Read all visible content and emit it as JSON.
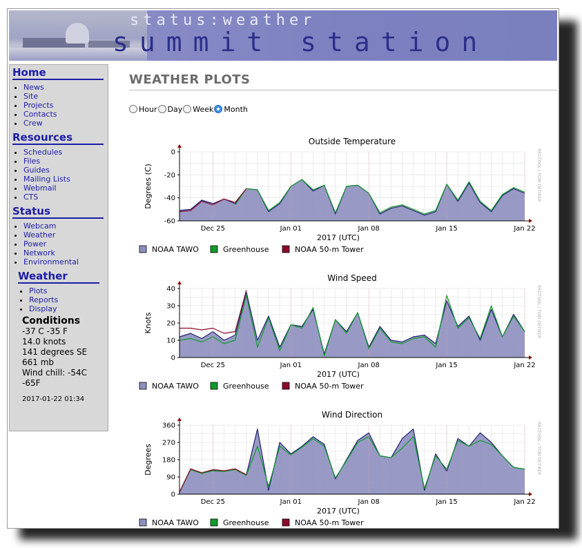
{
  "banner": {
    "subtitle": "status:weather",
    "title": "summit station"
  },
  "sidebar": {
    "sections": [
      {
        "heading": "Home",
        "items": [
          "News",
          "Site",
          "Projects",
          "Contacts",
          "Crew"
        ]
      },
      {
        "heading": "Resources",
        "items": [
          "Schedules",
          "Files",
          "Guides",
          "Mailing Lists",
          "Webmail",
          "CTS"
        ]
      },
      {
        "heading": "Status",
        "items": [
          "Webcam",
          "Weather",
          "Power",
          "Network",
          "Environmental"
        ]
      }
    ],
    "weather": {
      "heading": "Weather",
      "items": [
        "Plots",
        "Reports",
        "Display"
      ]
    },
    "conditions": {
      "title": "Conditions",
      "lines": [
        "-37 C -35 F",
        "14.0 knots",
        "141 degrees SE",
        "661 mb",
        "Wind chill: -54C",
        "-65F"
      ],
      "timestamp": "2017-01-22 01:34"
    }
  },
  "main": {
    "page_title": "WEATHER PLOTS",
    "periods": [
      {
        "label": "Hour",
        "selected": false
      },
      {
        "label": "Day",
        "selected": false
      },
      {
        "label": "Week",
        "selected": false
      },
      {
        "label": "Month",
        "selected": true
      }
    ]
  },
  "watermark": "RRDTOOL / TOBI OETIKER",
  "colors": {
    "noaa_tawo": "#8d8fbf",
    "noaa_tawo_line": "#1f2070",
    "greenhouse": "#119a2b",
    "tower": "#8b0a2a",
    "plot_bg": "#ffffff"
  },
  "chart_data": [
    {
      "type": "area",
      "title": "Outside Temperature",
      "xlabel": "2017 (UTC)",
      "ylabel": "Degrees (C)",
      "ylim": [
        -60,
        0
      ],
      "yticks": [
        0,
        -20,
        -40,
        -60
      ],
      "xlim": [
        "2016-12-22",
        "2017-01-22"
      ],
      "xticks": [
        "Dec 25",
        "Jan 01",
        "Jan 08",
        "Jan 15",
        "Jan 22"
      ],
      "legend": [
        "NOAA TAWO",
        "Greenhouse",
        "NOAA 50-m Tower"
      ],
      "series": [
        {
          "name": "NOAA TAWO",
          "x": [
            "2016-12-22",
            "2016-12-23",
            "2016-12-24",
            "2016-12-25",
            "2016-12-26",
            "2016-12-27",
            "2016-12-28",
            "2016-12-29",
            "2016-12-30",
            "2016-12-31",
            "2017-01-01",
            "2017-01-02",
            "2017-01-03",
            "2017-01-04",
            "2017-01-05",
            "2017-01-06",
            "2017-01-07",
            "2017-01-08",
            "2017-01-09",
            "2017-01-10",
            "2017-01-11",
            "2017-01-12",
            "2017-01-13",
            "2017-01-14",
            "2017-01-15",
            "2017-01-16",
            "2017-01-17",
            "2017-01-18",
            "2017-01-19",
            "2017-01-20",
            "2017-01-21",
            "2017-01-22"
          ],
          "values": [
            -51,
            -50,
            -42,
            -45,
            -41,
            -45,
            -32,
            -33,
            -52,
            -45,
            -30,
            -24,
            -34,
            -29,
            -54,
            -30,
            -29,
            -36,
            -54,
            -49,
            -47,
            -51,
            -55,
            -52,
            -28,
            -43,
            -27,
            -44,
            -52,
            -38,
            -32,
            -36
          ]
        },
        {
          "name": "Greenhouse",
          "x": [
            "2016-12-27",
            "2016-12-28",
            "2016-12-29",
            "2016-12-30",
            "2016-12-31",
            "2017-01-01",
            "2017-01-02",
            "2017-01-03",
            "2017-01-04",
            "2017-01-05",
            "2017-01-06",
            "2017-01-07",
            "2017-01-08",
            "2017-01-09",
            "2017-01-10",
            "2017-01-11",
            "2017-01-12",
            "2017-01-13",
            "2017-01-14",
            "2017-01-15",
            "2017-01-16",
            "2017-01-17",
            "2017-01-18",
            "2017-01-19",
            "2017-01-20",
            "2017-01-21",
            "2017-01-22"
          ],
          "values": [
            -46,
            -32,
            -33,
            -51,
            -44,
            -30,
            -24,
            -33,
            -29,
            -53,
            -30,
            -29,
            -36,
            -53,
            -48,
            -46,
            -50,
            -54,
            -51,
            -28,
            -42,
            -26,
            -43,
            -51,
            -37,
            -31,
            -35
          ]
        },
        {
          "name": "NOAA 50-m Tower",
          "x": [
            "2016-12-22",
            "2016-12-23",
            "2016-12-24",
            "2016-12-25",
            "2016-12-26",
            "2016-12-27",
            "2016-12-28"
          ],
          "values": [
            -52,
            -51,
            -43,
            -46,
            -41,
            -44,
            -32
          ]
        }
      ]
    },
    {
      "type": "area",
      "title": "Wind Speed",
      "xlabel": "2017 (UTC)",
      "ylabel": "Knots",
      "ylim": [
        0,
        40
      ],
      "yticks": [
        0,
        10,
        20,
        30,
        40
      ],
      "xlim": [
        "2016-12-22",
        "2017-01-22"
      ],
      "xticks": [
        "Dec 25",
        "Jan 01",
        "Jan 08",
        "Jan 15",
        "Jan 22"
      ],
      "legend": [
        "NOAA TAWO",
        "Greenhouse",
        "NOAA 50-m Tower"
      ],
      "series": [
        {
          "name": "NOAA TAWO",
          "x": [
            "2016-12-22",
            "2016-12-23",
            "2016-12-24",
            "2016-12-25",
            "2016-12-26",
            "2016-12-27",
            "2016-12-28",
            "2016-12-29",
            "2016-12-30",
            "2016-12-31",
            "2017-01-01",
            "2017-01-02",
            "2017-01-03",
            "2017-01-04",
            "2017-01-05",
            "2017-01-06",
            "2017-01-07",
            "2017-01-08",
            "2017-01-09",
            "2017-01-10",
            "2017-01-11",
            "2017-01-12",
            "2017-01-13",
            "2017-01-14",
            "2017-01-15",
            "2017-01-16",
            "2017-01-17",
            "2017-01-18",
            "2017-01-19",
            "2017-01-20",
            "2017-01-21",
            "2017-01-22"
          ],
          "values": [
            12,
            14,
            11,
            15,
            10,
            13,
            38,
            10,
            24,
            6,
            19,
            18,
            28,
            2,
            22,
            15,
            26,
            6,
            18,
            10,
            9,
            12,
            13,
            8,
            33,
            18,
            24,
            10,
            28,
            12,
            25,
            15
          ]
        },
        {
          "name": "Greenhouse",
          "x": [
            "2016-12-22",
            "2016-12-23",
            "2016-12-24",
            "2016-12-25",
            "2016-12-26",
            "2016-12-27",
            "2016-12-28",
            "2016-12-29",
            "2016-12-30",
            "2016-12-31",
            "2017-01-01",
            "2017-01-02",
            "2017-01-03",
            "2017-01-04",
            "2017-01-05",
            "2017-01-06",
            "2017-01-07",
            "2017-01-08",
            "2017-01-09",
            "2017-01-10",
            "2017-01-11",
            "2017-01-12",
            "2017-01-13",
            "2017-01-14",
            "2017-01-15",
            "2017-01-16",
            "2017-01-17",
            "2017-01-18",
            "2017-01-19",
            "2017-01-20",
            "2017-01-21",
            "2017-01-22"
          ],
          "values": [
            10,
            11,
            9,
            12,
            8,
            10,
            36,
            6,
            23,
            4,
            19,
            17,
            29,
            1,
            22,
            14,
            26,
            5,
            17,
            9,
            8,
            11,
            12,
            6,
            36,
            17,
            23,
            11,
            30,
            12,
            24,
            15
          ]
        },
        {
          "name": "NOAA 50-m Tower",
          "x": [
            "2016-12-22",
            "2016-12-23",
            "2016-12-24",
            "2016-12-25",
            "2016-12-26",
            "2016-12-27",
            "2016-12-28"
          ],
          "values": [
            17,
            17,
            16,
            17,
            14,
            15,
            39
          ]
        }
      ]
    },
    {
      "type": "area",
      "title": "Wind Direction",
      "xlabel": "2017 (UTC)",
      "ylabel": "Degrees",
      "ylim": [
        0,
        360
      ],
      "yticks": [
        0,
        90,
        180,
        270,
        360
      ],
      "xlim": [
        "2016-12-22",
        "2017-01-22"
      ],
      "xticks": [
        "Dec 25",
        "Jan 01",
        "Jan 08",
        "Jan 15",
        "Jan 22"
      ],
      "legend": [
        "NOAA TAWO",
        "Greenhouse",
        "NOAA 50-m Tower"
      ],
      "series": [
        {
          "name": "NOAA TAWO",
          "x": [
            "2016-12-22",
            "2016-12-23",
            "2016-12-24",
            "2016-12-25",
            "2016-12-26",
            "2016-12-27",
            "2016-12-28",
            "2016-12-29",
            "2016-12-30",
            "2016-12-31",
            "2017-01-01",
            "2017-01-02",
            "2017-01-03",
            "2017-01-04",
            "2017-01-05",
            "2017-01-06",
            "2017-01-07",
            "2017-01-08",
            "2017-01-09",
            "2017-01-10",
            "2017-01-11",
            "2017-01-12",
            "2017-01-13",
            "2017-01-14",
            "2017-01-15",
            "2017-01-16",
            "2017-01-17",
            "2017-01-18",
            "2017-01-19",
            "2017-01-20",
            "2017-01-21",
            "2017-01-22"
          ],
          "values": [
            10,
            130,
            110,
            125,
            120,
            130,
            100,
            340,
            20,
            270,
            210,
            250,
            300,
            260,
            80,
            180,
            280,
            320,
            200,
            190,
            290,
            340,
            20,
            210,
            120,
            290,
            250,
            320,
            270,
            200,
            140,
            130
          ]
        },
        {
          "name": "Greenhouse",
          "x": [
            "2016-12-22",
            "2016-12-23",
            "2016-12-24",
            "2016-12-25",
            "2016-12-26",
            "2016-12-27",
            "2016-12-28",
            "2016-12-29",
            "2016-12-30",
            "2016-12-31",
            "2017-01-01",
            "2017-01-02",
            "2017-01-03",
            "2017-01-04",
            "2017-01-05",
            "2017-01-06",
            "2017-01-07",
            "2017-01-08",
            "2017-01-09",
            "2017-01-10",
            "2017-01-11",
            "2017-01-12",
            "2017-01-13",
            "2017-01-14",
            "2017-01-15",
            "2017-01-16",
            "2017-01-17",
            "2017-01-18",
            "2017-01-19",
            "2017-01-20",
            "2017-01-21",
            "2017-01-22"
          ],
          "values": [
            10,
            128,
            108,
            122,
            118,
            128,
            98,
            250,
            40,
            250,
            205,
            245,
            290,
            250,
            85,
            175,
            270,
            300,
            200,
            190,
            240,
            300,
            30,
            200,
            130,
            280,
            250,
            280,
            260,
            200,
            140,
            130
          ]
        },
        {
          "name": "NOAA 50-m Tower",
          "x": [
            "2016-12-22",
            "2016-12-23",
            "2016-12-24",
            "2016-12-25",
            "2016-12-26",
            "2016-12-27",
            "2016-12-28"
          ],
          "values": [
            12,
            132,
            112,
            128,
            122,
            132,
            102
          ]
        }
      ]
    }
  ]
}
